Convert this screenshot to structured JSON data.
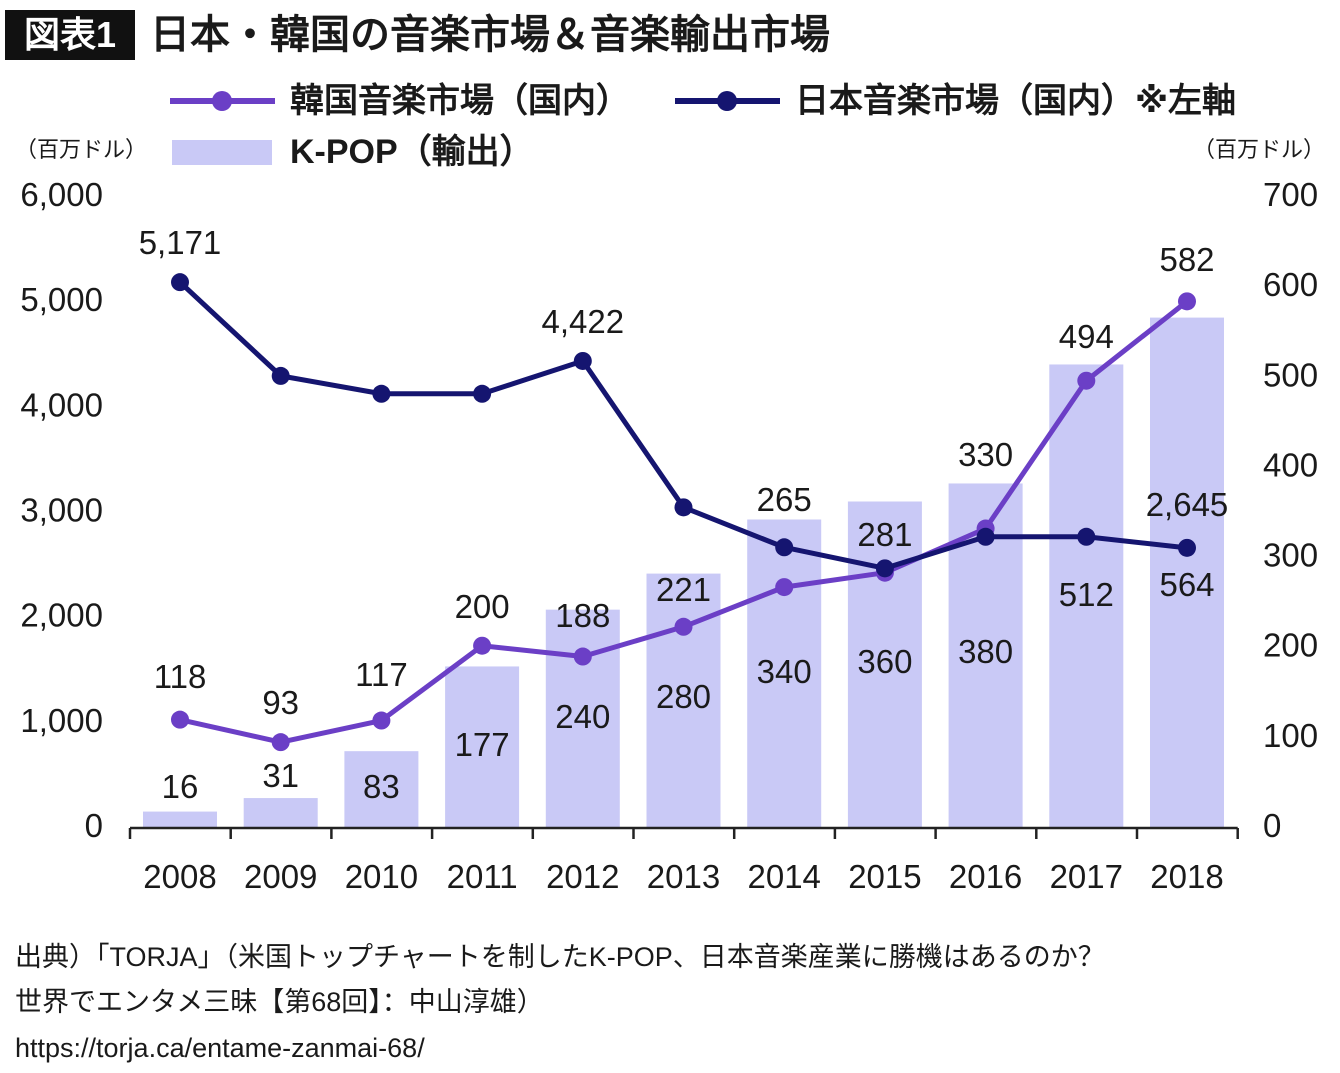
{
  "figure_label": "図表1",
  "chart_data": {
    "type": "bar",
    "title": "日本・韓国の音楽市場＆音楽輸出市場",
    "categories": [
      "2008",
      "2009",
      "2010",
      "2011",
      "2012",
      "2013",
      "2014",
      "2015",
      "2016",
      "2017",
      "2018"
    ],
    "y_left": {
      "unit": "（百万ドル）",
      "range": [
        0,
        6000
      ],
      "ticks": [
        "0",
        "1,000",
        "2,000",
        "3,000",
        "4,000",
        "5,000",
        "6,000"
      ]
    },
    "y_right": {
      "unit": "（百万ドル）",
      "range": [
        0,
        700
      ],
      "ticks": [
        "0",
        "100",
        "200",
        "300",
        "400",
        "500",
        "600",
        "700"
      ]
    },
    "series": [
      {
        "name": "韓国音楽市場（国内）",
        "type": "line",
        "axis": "right",
        "color": "#6b3fc6",
        "values": [
          118,
          93,
          117,
          200,
          188,
          221,
          265,
          281,
          330,
          494,
          582
        ],
        "labels": [
          "118",
          "93",
          "117",
          "200",
          "188",
          "221",
          "265",
          "281",
          "330",
          "494",
          "582"
        ]
      },
      {
        "name": "日本音楽市場（国内）※左軸",
        "type": "line",
        "axis": "left",
        "color": "#151570",
        "values": [
          5171,
          4280,
          4110,
          4110,
          4422,
          3030,
          2650,
          2450,
          2750,
          2750,
          2645
        ],
        "labels": [
          "5,171",
          null,
          null,
          null,
          "4,422",
          null,
          null,
          null,
          null,
          null,
          "2,645"
        ]
      },
      {
        "name": "K-POP（輸出）",
        "type": "bar",
        "axis": "right",
        "color": "#c9c9f6",
        "values": [
          16,
          31,
          83,
          177,
          240,
          280,
          340,
          360,
          380,
          512,
          564
        ],
        "labels": [
          "16",
          "31",
          "83",
          "177",
          "240",
          "280",
          "340",
          "360",
          "380",
          "512",
          "564"
        ]
      }
    ],
    "legend_position": "top",
    "grid": false
  },
  "source": {
    "lines": [
      "出典）「TORJA」（米国トップチャートを制したK-POP、日本音楽産業に勝機はあるのか？",
      "世界でエンタメ三昧【第68回】：中山淳雄）",
      "https://torja.ca/entame-zanmai-68/"
    ]
  }
}
